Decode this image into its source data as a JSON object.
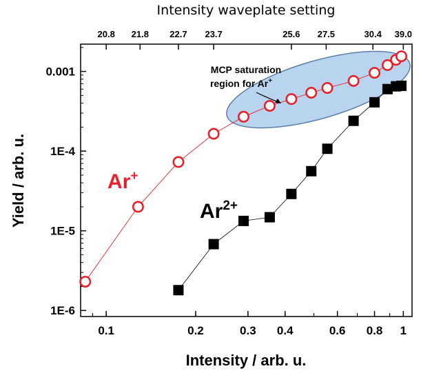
{
  "chart_data": {
    "type": "scatter",
    "title": "",
    "xlabel": "Intensity / arb. u.",
    "ylabel": "Yield / arb. u.",
    "x_scale": "log",
    "y_scale": "log",
    "xlim": [
      0.082,
      1.07
    ],
    "ylim": [
      8.4e-07,
      0.0022
    ],
    "x_ticks": [
      {
        "value": 0.1,
        "label": "0.1"
      },
      {
        "value": 0.2,
        "label": "0.2"
      },
      {
        "value": 0.3,
        "label": "0.3"
      },
      {
        "value": 0.4,
        "label": "0.4"
      },
      {
        "value": 0.6,
        "label": "0.6"
      },
      {
        "value": 0.8,
        "label": "0.8"
      },
      {
        "value": 1.0,
        "label": "1"
      }
    ],
    "y_ticks": [
      {
        "value": 0.001,
        "label": "0.001"
      },
      {
        "value": 0.0001,
        "label": "1E-4"
      },
      {
        "value": 1e-05,
        "label": "1E-5"
      },
      {
        "value": 1e-06,
        "label": "1E-6"
      }
    ],
    "top_axis": {
      "label": "Intensity waveplate setting",
      "ticks": [
        {
          "value": 0.1,
          "label": "20.8"
        },
        {
          "value": 0.13,
          "label": "21.8"
        },
        {
          "value": 0.175,
          "label": "22.7"
        },
        {
          "value": 0.23,
          "label": "23.7"
        },
        {
          "value": 0.42,
          "label": "25.6"
        },
        {
          "value": 0.55,
          "label": "27.5"
        },
        {
          "value": 0.79,
          "label": "30.4"
        },
        {
          "value": 1.0,
          "label": "39.0"
        }
      ]
    },
    "series": [
      {
        "name": "Ar⁺",
        "color": "#e8202a",
        "marker": "open-circle",
        "x": [
          0.085,
          0.128,
          0.175,
          0.23,
          0.29,
          0.355,
          0.42,
          0.49,
          0.555,
          0.68,
          0.8,
          0.885,
          0.945,
          0.985
        ],
        "y": [
          2.3e-06,
          2e-05,
          7.3e-05,
          0.000165,
          0.00027,
          0.00037,
          0.00045,
          0.00054,
          0.00062,
          0.00076,
          0.00096,
          0.0012,
          0.0014,
          0.00155
        ]
      },
      {
        "name": "Ar²⁺",
        "color": "#000000",
        "marker": "filled-square",
        "x": [
          0.175,
          0.23,
          0.29,
          0.355,
          0.42,
          0.49,
          0.555,
          0.68,
          0.8,
          0.885,
          0.945,
          0.985
        ],
        "y": [
          1.8e-06,
          6.8e-06,
          1.33e-05,
          1.48e-05,
          2.9e-05,
          5.6e-05,
          0.000107,
          0.00024,
          0.00041,
          0.0006,
          0.00065,
          0.00066
        ]
      }
    ],
    "series_labels": [
      {
        "text_main": "Ar",
        "text_sup": "+",
        "color": "#e8202a"
      },
      {
        "text_main": "Ar",
        "text_sup": "2+",
        "color": "#000000"
      }
    ],
    "annotation": {
      "line1": "MCP saturation",
      "line2": "region for Ar",
      "line2_sup": "+",
      "fill": "#b8d4ee",
      "stroke": "#5a7fa8"
    },
    "grid": false,
    "legend": "none"
  }
}
